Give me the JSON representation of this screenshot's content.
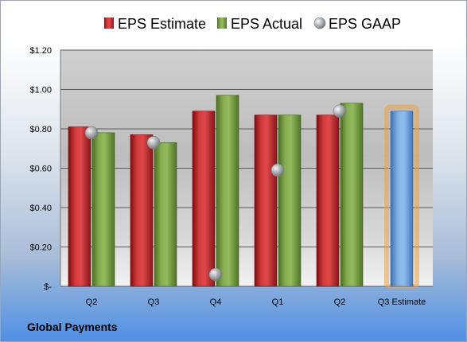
{
  "company": "Global Payments",
  "chart_data": {
    "type": "bar",
    "title": "",
    "xlabel": "",
    "ylabel": "",
    "categories": [
      "Q2",
      "Q3",
      "Q4",
      "Q1",
      "Q2",
      "Q3 Estimate"
    ],
    "ylim": [
      0,
      1.2
    ],
    "yticks": [
      {
        "value": 0,
        "label": "$-"
      },
      {
        "value": 0.2,
        "label": "$0.20"
      },
      {
        "value": 0.4,
        "label": "$0.40"
      },
      {
        "value": 0.6,
        "label": "$0.60"
      },
      {
        "value": 0.8,
        "label": "$0.80"
      },
      {
        "value": 1.0,
        "label": "$1.00"
      },
      {
        "value": 1.2,
        "label": "$1.20"
      }
    ],
    "grid": true,
    "legend_position": "top",
    "series": [
      {
        "name": "EPS Estimate",
        "kind": "bar",
        "color": "#c0282a",
        "values": [
          0.81,
          0.77,
          0.89,
          0.87,
          0.87,
          null
        ]
      },
      {
        "name": "EPS Actual",
        "kind": "bar",
        "color": "#6e9a3a",
        "values": [
          0.78,
          0.73,
          0.97,
          0.87,
          0.93,
          null
        ]
      },
      {
        "name": "EPS GAAP",
        "kind": "marker",
        "color": "#a8adb4",
        "values": [
          0.78,
          0.73,
          0.06,
          0.59,
          0.89,
          null
        ]
      }
    ],
    "estimate": {
      "category": "Q3 Estimate",
      "value": 0.89,
      "color": "#6a9fd8",
      "highlight_color": "#f0a040"
    }
  }
}
